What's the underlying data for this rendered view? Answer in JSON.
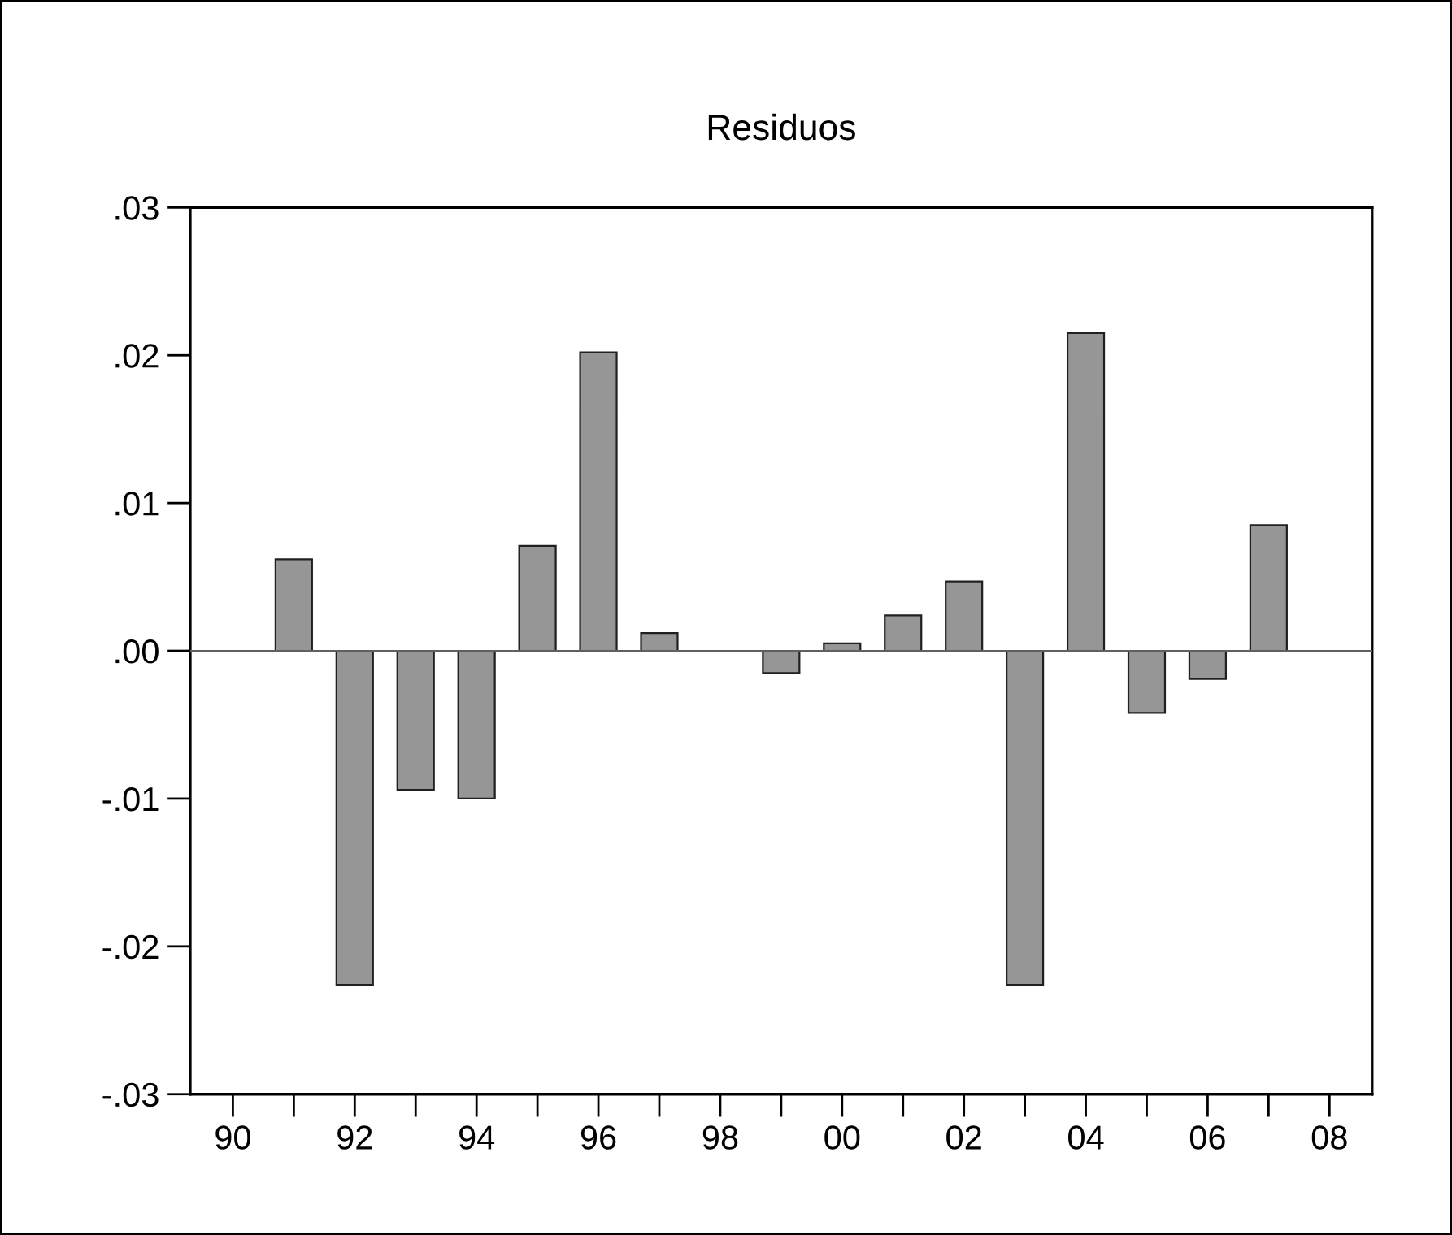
{
  "chart_data": {
    "type": "bar",
    "title": "Residuos",
    "x": [
      1991,
      1992,
      1993,
      1994,
      1995,
      1996,
      1997,
      1999,
      2000,
      2001,
      2002,
      2003,
      2004,
      2005,
      2006,
      2007
    ],
    "values": [
      0.0062,
      -0.0226,
      -0.0094,
      -0.01,
      0.0071,
      0.0202,
      0.0012,
      -0.0015,
      0.0005,
      0.0024,
      0.0047,
      -0.0226,
      0.0215,
      -0.0042,
      -0.0019,
      0.0085
    ],
    "color": "#969696",
    "xlim": [
      1989.3,
      2008.7
    ],
    "xticks": [
      {
        "value": 1990,
        "label": "90"
      },
      {
        "value": 1991,
        "label": null
      },
      {
        "value": 1992,
        "label": "92"
      },
      {
        "value": 1993,
        "label": null
      },
      {
        "value": 1994,
        "label": "94"
      },
      {
        "value": 1995,
        "label": null
      },
      {
        "value": 1996,
        "label": "96"
      },
      {
        "value": 1997,
        "label": null
      },
      {
        "value": 1998,
        "label": "98"
      },
      {
        "value": 1999,
        "label": null
      },
      {
        "value": 2000,
        "label": "00"
      },
      {
        "value": 2001,
        "label": null
      },
      {
        "value": 2002,
        "label": "02"
      },
      {
        "value": 2003,
        "label": null
      },
      {
        "value": 2004,
        "label": "04"
      },
      {
        "value": 2005,
        "label": null
      },
      {
        "value": 2006,
        "label": "06"
      },
      {
        "value": 2007,
        "label": null
      },
      {
        "value": 2008,
        "label": "08"
      }
    ],
    "ylim": [
      -0.03,
      0.03
    ],
    "yticks": [
      {
        "value": -0.03,
        "label": "-.03"
      },
      {
        "value": -0.02,
        "label": "-.02"
      },
      {
        "value": -0.01,
        "label": "-.01"
      },
      {
        "value": 0,
        "label": ".00"
      },
      {
        "value": 0.01,
        "label": ".01"
      },
      {
        "value": 0.02,
        "label": ".02"
      },
      {
        "value": 0.03,
        "label": ".03"
      }
    ],
    "ref_lines": [
      {
        "axis": "y",
        "value": 0,
        "color": "#606060"
      }
    ],
    "grid": false,
    "legend": false
  }
}
